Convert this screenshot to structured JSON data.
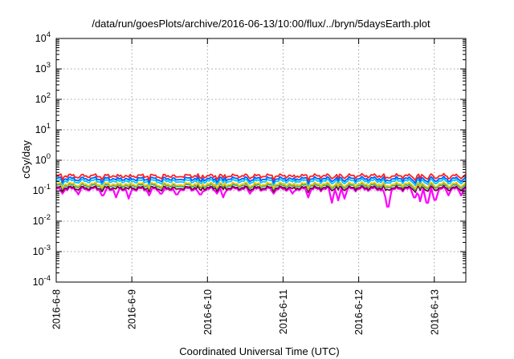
{
  "chart_data": {
    "type": "line",
    "title": "/data/run/goesPlots/archive/2016-06-13/10:00/flux/../bryn/5daysEarth.plot",
    "xlabel": "Coordinated Universal Time (UTC)",
    "ylabel": "cGy/day",
    "yscale": "log",
    "ylim": [
      0.0001,
      10000
    ],
    "xlim": [
      "2016-06-08T00:00",
      "2016-06-13T10:00"
    ],
    "x_tick_labels": [
      "2016-6-8",
      "2016-6-9",
      "2016-6-10",
      "2016-6-11",
      "2016-6-12",
      "2016-6-13"
    ],
    "y_ticks": [
      {
        "base": "10",
        "exp": "4"
      },
      {
        "base": "10",
        "exp": "3"
      },
      {
        "base": "10",
        "exp": "2"
      },
      {
        "base": "10",
        "exp": "1"
      },
      {
        "base": "10",
        "exp": "0"
      },
      {
        "base": "10",
        "exp": "-1"
      },
      {
        "base": "10",
        "exp": "-2"
      },
      {
        "base": "10",
        "exp": "-3"
      },
      {
        "base": "10",
        "exp": "-4"
      }
    ],
    "grid": true,
    "legend": "none",
    "series": [
      {
        "color": "#ff00ff",
        "level": 0.115,
        "dips": [
          {
            "t": "2016-06-08T02:06",
            "v": 0.08
          },
          {
            "t": "2016-06-08T07:01",
            "v": 0.075
          },
          {
            "t": "2016-06-08T14:43",
            "v": 0.07
          },
          {
            "t": "2016-06-08T18:53",
            "v": 0.06
          },
          {
            "t": "2016-06-08T22:48",
            "v": 0.055
          },
          {
            "t": "2016-06-09T05:29",
            "v": 0.07
          },
          {
            "t": "2016-06-09T09:14",
            "v": 0.08
          },
          {
            "t": "2016-06-09T14:16",
            "v": 0.075
          },
          {
            "t": "2016-06-09T21:47",
            "v": 0.075
          },
          {
            "t": "2016-06-10T02:58",
            "v": 0.08
          },
          {
            "t": "2016-06-10T04:48",
            "v": 0.06
          },
          {
            "t": "2016-06-10T13:25",
            "v": 0.08
          },
          {
            "t": "2016-06-10T21:07",
            "v": 0.08
          },
          {
            "t": "2016-06-11T02:50",
            "v": 0.08
          },
          {
            "t": "2016-06-11T07:52",
            "v": 0.06
          },
          {
            "t": "2016-06-11T15:42",
            "v": 0.04
          },
          {
            "t": "2016-06-11T17:25",
            "v": 0.048
          },
          {
            "t": "2016-06-11T19:36",
            "v": 0.055
          },
          {
            "t": "2016-06-12T08:36",
            "v": 0.07
          },
          {
            "t": "2016-06-12T09:14",
            "v": 0.03
          },
          {
            "t": "2016-06-12T17:47",
            "v": 0.06
          },
          {
            "t": "2016-06-12T19:36",
            "v": 0.045
          },
          {
            "t": "2016-06-12T21:47",
            "v": 0.04
          },
          {
            "t": "2016-06-13T00:14",
            "v": 0.05
          },
          {
            "t": "2016-06-13T04:23",
            "v": 0.07
          },
          {
            "t": "2016-06-13T08:36",
            "v": 0.07
          }
        ]
      },
      {
        "color": "#7f0040",
        "level": 0.125
      },
      {
        "color": "#20b070",
        "level": 0.15
      },
      {
        "color": "#ffc000",
        "level": 0.165
      },
      {
        "color": "#00c8ff",
        "level": 0.21
      },
      {
        "color": "#0060ff",
        "level": 0.25
      },
      {
        "color": "#ff2020",
        "level": 0.31
      }
    ]
  }
}
